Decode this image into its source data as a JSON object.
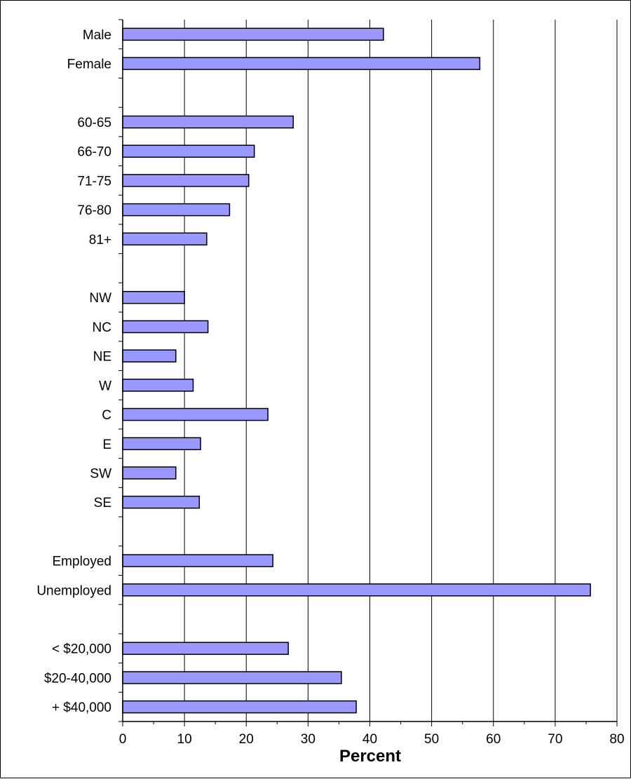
{
  "chart_data": {
    "type": "bar",
    "orientation": "horizontal",
    "categories": [
      "Male",
      "Female",
      "",
      "60-65",
      "66-70",
      "71-75",
      "76-80",
      "81+",
      "",
      "NW",
      "NC",
      "NE",
      "W",
      "C",
      "E",
      "SW",
      "SE",
      "",
      "Employed",
      "Unemployed",
      "",
      "< $20,000",
      "$20-40,000",
      "+ $40,000"
    ],
    "values": [
      42.2,
      57.8,
      null,
      27.6,
      21.3,
      20.4,
      17.3,
      13.6,
      null,
      10.0,
      13.8,
      8.6,
      11.4,
      23.5,
      12.6,
      8.6,
      12.4,
      null,
      24.3,
      75.7,
      null,
      26.8,
      35.4,
      37.8
    ],
    "xlabel": "Percent",
    "ylabel": "",
    "title": "",
    "xlim": [
      0,
      80
    ],
    "xticks": [
      0,
      10,
      20,
      30,
      40,
      50,
      60,
      70,
      80
    ],
    "grid": "vertical major gridlines",
    "legend": "none",
    "bar_color": "#9999ff",
    "bar_edge_color": "#000000"
  }
}
